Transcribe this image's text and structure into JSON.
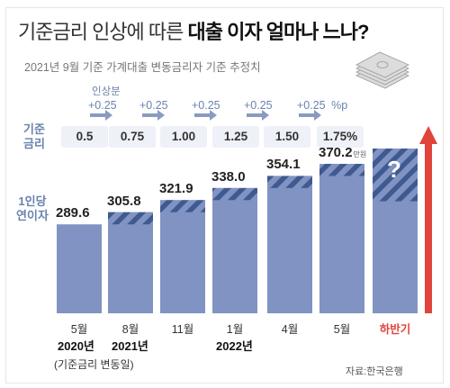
{
  "title": {
    "light": "기준금리 인상에 따른",
    "bold": "대출 이자 얼마나 느나?"
  },
  "subtitle": "2021년 9월 기준 가계대출 변동금리자 기준 추정치",
  "labels": {
    "rate_row": "기준\n금리",
    "value_row": "1인당\n연이자",
    "increase_title": "인상분",
    "unit_suffix": "%p",
    "value_unit": "만원",
    "question_mark": "?",
    "base_note": "(기준금리 변동일)",
    "source": "자료:한국은행"
  },
  "increases": [
    "+0.25",
    "+0.25",
    "+0.25",
    "+0.25",
    "+0.25"
  ],
  "years": [
    "2020년",
    "2021년",
    "2022년"
  ],
  "colors": {
    "bar": "#8093c2",
    "stripe": "#3f5a90",
    "arrow": "#e0443b",
    "accent_text": "#6a83ad"
  },
  "chart_data": {
    "type": "bar",
    "categories": [
      "5월",
      "8월",
      "11월",
      "1월",
      "4월",
      "5월",
      "하반기"
    ],
    "series": [
      {
        "values": [
          289.6,
          305.8,
          321.9,
          338.0,
          354.1,
          370.2,
          null
        ]
      }
    ],
    "value_labels": [
      "289.6",
      "305.8",
      "321.9",
      "338.0",
      "354.1",
      "370.2",
      "?"
    ],
    "base_rates": [
      "0.5",
      "0.75",
      "1.00",
      "1.25",
      "1.50",
      "1.75%"
    ],
    "ylim": [
      0,
      420
    ],
    "xlabel": "",
    "ylabel": "",
    "grid": false
  }
}
